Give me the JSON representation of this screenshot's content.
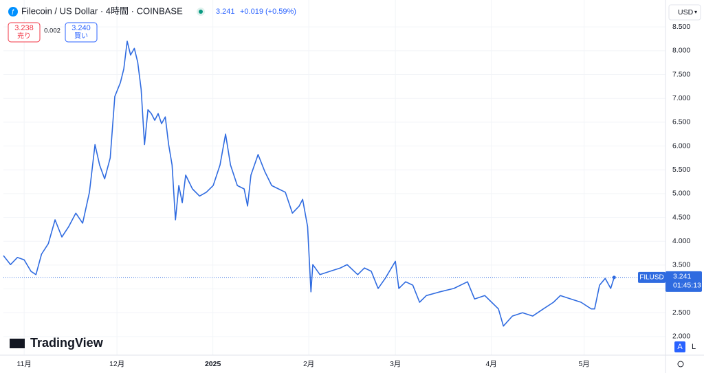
{
  "header": {
    "symbol": "Filecoin / US Dollar · 4時間 · COINBASE",
    "change": "+0.019 (+0.59%)"
  },
  "trade": {
    "sell": "3.238",
    "sell_label": "売り",
    "spread": "0.002",
    "buy": "3.240",
    "buy_label": "買い"
  },
  "chart_data": {
    "type": "line",
    "x": [
      -6.7,
      -4.4,
      -2.2,
      0,
      2.2,
      3.8,
      5.6,
      7.8,
      10,
      12.2,
      14.4,
      16.7,
      18.9,
      21.1,
      22.9,
      24.4,
      26,
      27.8,
      29.3,
      31.1,
      32.2,
      33.3,
      34.4,
      35.6,
      36.7,
      37.8,
      38.9,
      40,
      41.1,
      42.2,
      43.3,
      44.4,
      45.6,
      46.7,
      47.8,
      48.9,
      50,
      51.1,
      52.2,
      54.4,
      56.7,
      58.9,
      61.1,
      63.3,
      65.1,
      66.7,
      68.9,
      71.1,
      72.2,
      73.3,
      75.6,
      77.8,
      80,
      82.2,
      84.4,
      86.7,
      88.9,
      90,
      91.6,
      92.7,
      93.3,
      95.6,
      98.9,
      102.2,
      104.4,
      107.8,
      110,
      112.2,
      114.4,
      116.7,
      120,
      121.1,
      123.3,
      125.6,
      127.8,
      130,
      134.4,
      138.9,
      143.3,
      145.6,
      148.9,
      151.1,
      153.3,
      154.9,
      157.8,
      161.1,
      164.4,
      167.8,
      171.1,
      173.3,
      176.7,
      180,
      183.3,
      184.4,
      186,
      187.8,
      189.6,
      190.7
    ],
    "series": [
      {
        "name": "FILUSD",
        "color": "#2f6be0",
        "values": [
          3.7,
          3.51,
          3.66,
          3.61,
          3.37,
          3.3,
          3.73,
          3.95,
          4.45,
          4.09,
          4.31,
          4.59,
          4.38,
          5.03,
          6.03,
          5.6,
          5.31,
          5.75,
          7.04,
          7.33,
          7.62,
          8.2,
          7.91,
          8.05,
          7.76,
          7.19,
          6.03,
          6.76,
          6.68,
          6.54,
          6.68,
          6.47,
          6.61,
          6.03,
          5.6,
          4.45,
          5.17,
          4.81,
          5.39,
          5.1,
          4.95,
          5.03,
          5.17,
          5.6,
          6.25,
          5.6,
          5.17,
          5.1,
          4.74,
          5.39,
          5.82,
          5.46,
          5.17,
          5.1,
          5.03,
          4.59,
          4.74,
          4.88,
          4.31,
          2.94,
          3.51,
          3.3,
          3.37,
          3.44,
          3.51,
          3.3,
          3.44,
          3.37,
          3.01,
          3.22,
          3.58,
          3.01,
          3.15,
          3.08,
          2.72,
          2.86,
          2.94,
          3.01,
          3.15,
          2.79,
          2.86,
          2.72,
          2.58,
          2.22,
          2.43,
          2.5,
          2.43,
          2.58,
          2.72,
          2.86,
          2.79,
          2.72,
          2.58,
          2.58,
          3.08,
          3.22,
          3.01,
          3.241
        ]
      }
    ],
    "xlim": [
      -6.7,
      207.3
    ],
    "xticks": [
      {
        "value": 0,
        "label": "11月"
      },
      {
        "value": 30,
        "label": "12月"
      },
      {
        "value": 61,
        "label": "2025"
      },
      {
        "value": 92,
        "label": "2月"
      },
      {
        "value": 120,
        "label": "3月"
      },
      {
        "value": 151,
        "label": "4月"
      },
      {
        "value": 181,
        "label": "5月"
      }
    ],
    "ylim": [
      1.61,
      8.69
    ],
    "yticks": [
      {
        "value": 2,
        "label": "2.000"
      },
      {
        "value": 2.5,
        "label": "2.500"
      },
      {
        "value": 3,
        "label": "3.000"
      },
      {
        "value": 3.5,
        "label": "3.500"
      },
      {
        "value": 4,
        "label": "4.000"
      },
      {
        "value": 4.5,
        "label": "4.500"
      },
      {
        "value": 5,
        "label": "5.000"
      },
      {
        "value": 5.5,
        "label": "5.500"
      },
      {
        "value": 6,
        "label": "6.000"
      },
      {
        "value": 6.5,
        "label": "6.500"
      },
      {
        "value": 7,
        "label": "7.000"
      },
      {
        "value": 7.5,
        "label": "7.500"
      },
      {
        "value": 8,
        "label": "8.000"
      },
      {
        "value": 8.5,
        "label": "8.500"
      }
    ],
    "grid": true,
    "currency": "USD",
    "last_value": 3.241,
    "countdown": "01:45:13"
  },
  "footer": {
    "logo": "TradingView",
    "scale_auto": "A",
    "scale_log": "L"
  }
}
